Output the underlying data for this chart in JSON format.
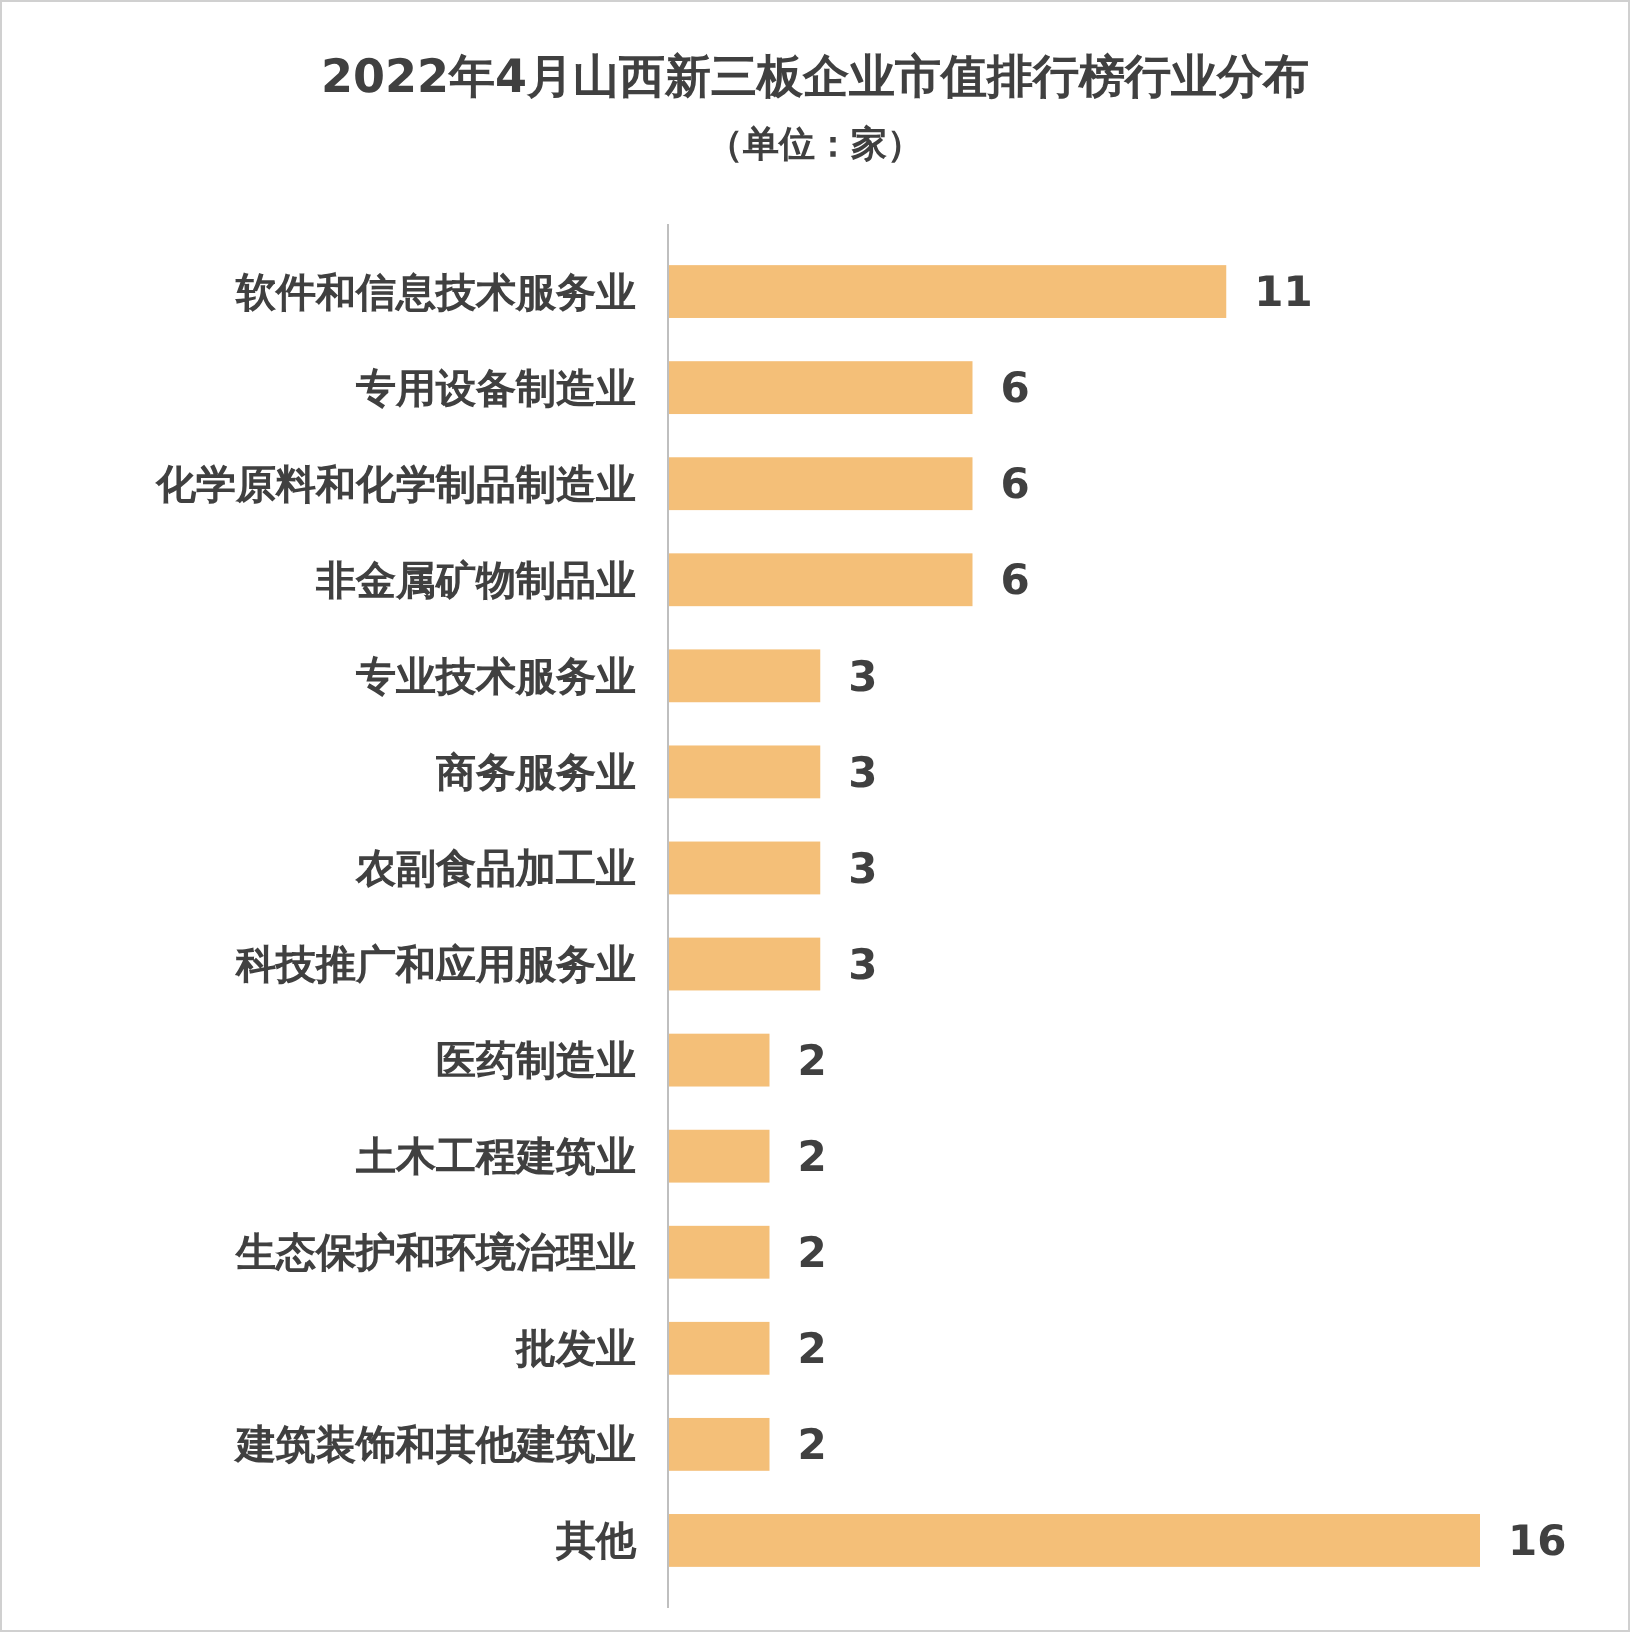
{
  "chart_data": {
    "type": "bar",
    "orientation": "horizontal",
    "title": "2022年4月山西新三板企业市值排行榜行业分布",
    "subtitle": "（单位：家）",
    "categories": [
      "软件和信息技术服务业",
      "专用设备制造业",
      "化学原料和化学制品制造业",
      "非金属矿物制品业",
      "专业技术服务业",
      "商务服务业",
      "农副食品加工业",
      "科技推广和应用服务业",
      "医药制造业",
      "土木工程建筑业",
      "生态保护和环境治理业",
      "批发业",
      "建筑装饰和其他建筑业",
      "其他"
    ],
    "values": [
      11,
      6,
      6,
      6,
      3,
      3,
      3,
      3,
      2,
      2,
      2,
      2,
      2,
      16
    ],
    "color": "#f4bf78",
    "data_labels": true,
    "grid": false
  }
}
